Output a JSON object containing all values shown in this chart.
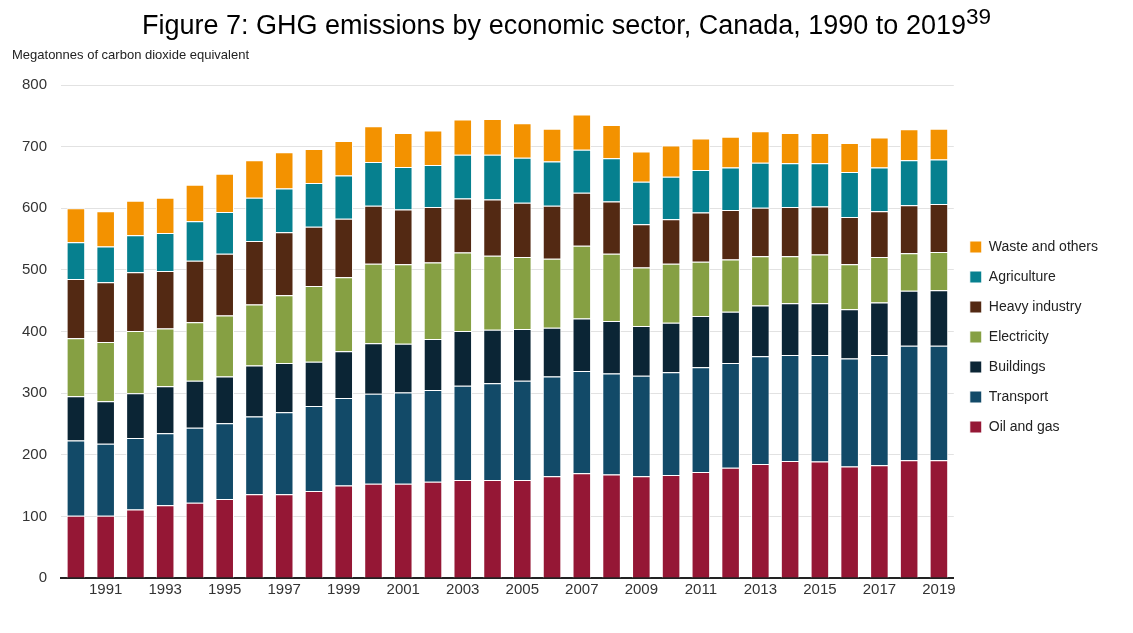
{
  "chart_data": {
    "type": "bar",
    "title": "Figure 7: GHG emissions by economic sector, Canada, 1990 to 2019$^{39}$",
    "ylabel": "Megatonnes of carbon dioxide equivalent",
    "categories": [
      null,
      "1991",
      null,
      "1993",
      null,
      "1995",
      null,
      "1997",
      null,
      "1999",
      null,
      "2001",
      null,
      "2003",
      null,
      "2005",
      null,
      "2007",
      null,
      "2009",
      null,
      "2011",
      null,
      "2013",
      null,
      "2015",
      null,
      "2017",
      null,
      "2019"
    ],
    "series": [
      {
        "name": "Oil and gas",
        "color": "#951735",
        "values": [
          101,
          101,
          111,
          118,
          122,
          128,
          136,
          136,
          141,
          150,
          153,
          153,
          156,
          159,
          159,
          159,
          165,
          170,
          168,
          165,
          167,
          172,
          179,
          185,
          190,
          189,
          181,
          183,
          191,
          191
        ]
      },
      {
        "name": "Transport",
        "color": "#124a68",
        "values": [
          122,
          117,
          116,
          117,
          122,
          123,
          126,
          133,
          138,
          142,
          146,
          148,
          149,
          153,
          157,
          161,
          162,
          166,
          164,
          163,
          167,
          170,
          170,
          175,
          172,
          173,
          175,
          179,
          186,
          186
        ]
      },
      {
        "name": "Buildings",
        "color": "#0b2535",
        "values": [
          72,
          69,
          73,
          76,
          76,
          76,
          83,
          80,
          72,
          76,
          82,
          79,
          83,
          89,
          87,
          84,
          79,
          85,
          85,
          81,
          80,
          83,
          83,
          82,
          84,
          84,
          80,
          85,
          89,
          90
        ]
      },
      {
        "name": "Electricity",
        "color": "#86a043",
        "values": [
          94,
          96,
          101,
          94,
          95,
          99,
          99,
          110,
          123,
          120,
          129,
          129,
          124,
          127,
          120,
          117,
          112,
          118,
          109,
          95,
          96,
          88,
          85,
          80,
          76,
          79,
          73,
          74,
          61,
          62
        ]
      },
      {
        "name": "Heavy industry",
        "color": "#532913",
        "values": [
          96,
          97,
          95,
          93,
          100,
          100,
          103,
          102,
          96,
          95,
          94,
          89,
          90,
          88,
          91,
          88,
          86,
          86,
          85,
          70,
          72,
          80,
          80,
          79,
          80,
          78,
          77,
          74,
          78,
          78
        ]
      },
      {
        "name": "Agriculture",
        "color": "#06808f",
        "values": [
          60,
          58,
          60,
          62,
          64,
          68,
          70,
          71,
          71,
          70,
          71,
          69,
          68,
          71,
          73,
          73,
          72,
          70,
          70,
          69,
          69,
          69,
          69,
          73,
          71,
          70,
          73,
          71,
          73,
          72
        ]
      },
      {
        "name": "Waste and others",
        "color": "#f39200",
        "values": [
          55,
          57,
          56,
          57,
          59,
          62,
          61,
          59,
          55,
          56,
          58,
          55,
          56,
          57,
          58,
          56,
          53,
          57,
          54,
          49,
          51,
          51,
          50,
          51,
          49,
          49,
          47,
          49,
          50,
          50
        ]
      }
    ],
    "stacked": true,
    "ylim": [
      0,
      800
    ],
    "yticks": [
      0,
      100,
      200,
      300,
      400,
      500,
      600,
      700,
      800
    ],
    "grid": "y",
    "legend": "right"
  }
}
